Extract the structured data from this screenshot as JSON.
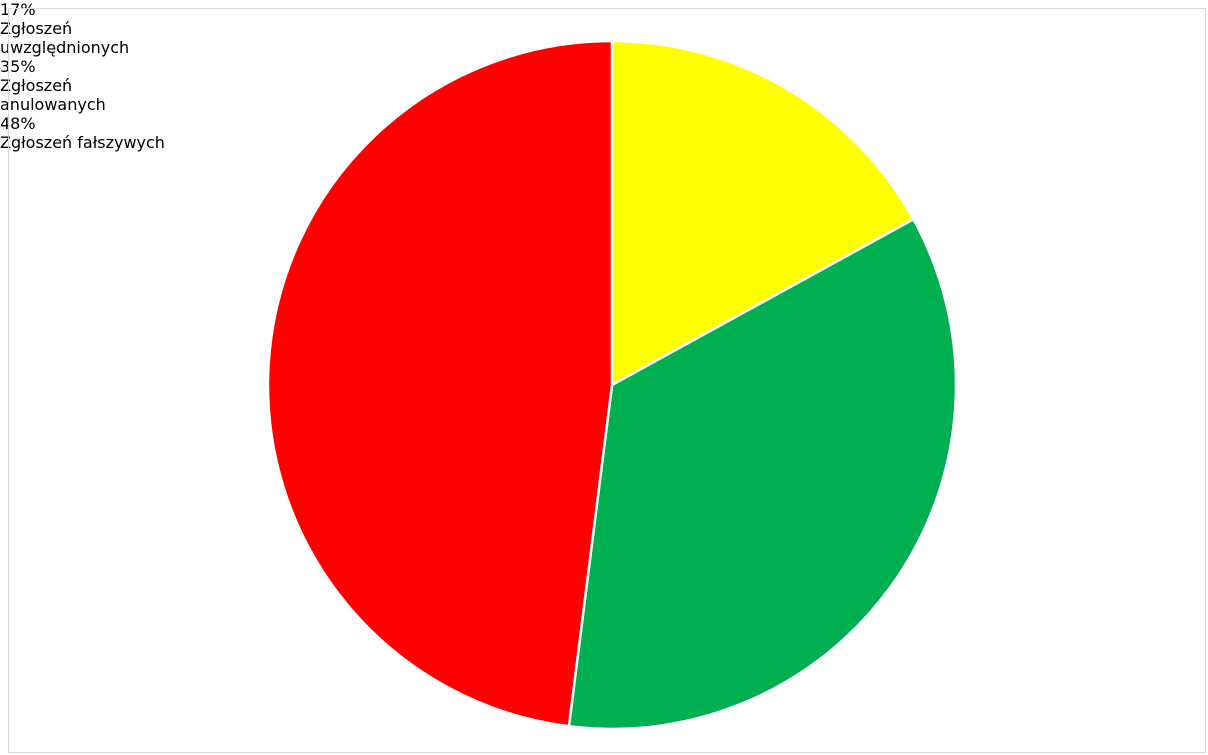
{
  "chart_data": {
    "type": "pie",
    "categories": [
      "Zgłoszeń uwzględnionych",
      "Zgłoszeń anulowanych",
      "Zgłoszeń fałszywych"
    ],
    "values": [
      17,
      35,
      48
    ],
    "value_labels": [
      "17%",
      "35%",
      "48%"
    ],
    "colors": [
      "#ffff00",
      "#00b050",
      "#ff0000"
    ]
  }
}
